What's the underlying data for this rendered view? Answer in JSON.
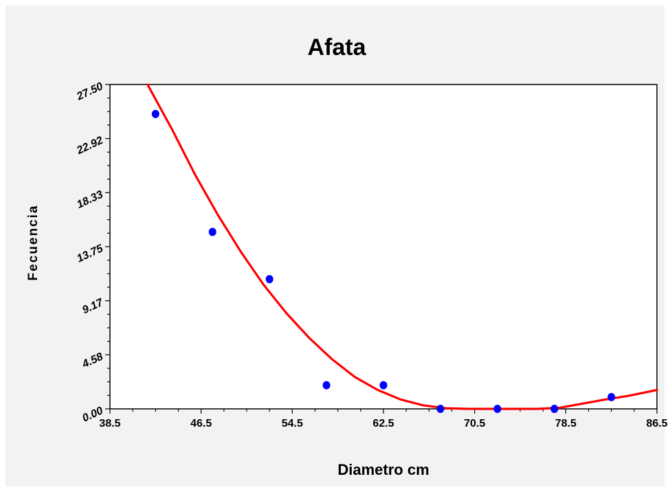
{
  "chart_data": {
    "type": "scatter",
    "title": "Afata",
    "xlabel": "Diametro cm",
    "ylabel": "Fecuencia",
    "xlim": [
      38.5,
      86.5
    ],
    "ylim": [
      0,
      27.5
    ],
    "x_ticks": [
      "38.5",
      "46.5",
      "54.5",
      "62.5",
      "70.5",
      "78.5",
      "86.5"
    ],
    "y_ticks": [
      "0.00",
      "4.58",
      "9.17",
      "13.75",
      "18.33",
      "22.92",
      "27.50"
    ],
    "points": {
      "x": [
        42.5,
        47.5,
        52.5,
        57.5,
        62.5,
        67.5,
        72.5,
        77.5,
        82.5
      ],
      "y": [
        25,
        15,
        11,
        2,
        2,
        0,
        0,
        0,
        1
      ]
    },
    "fit_curve": {
      "x": [
        41.8,
        44,
        46,
        48,
        50,
        52,
        54,
        56,
        58,
        60,
        62,
        64,
        66,
        68,
        70,
        72,
        74,
        76,
        78,
        80,
        82,
        84,
        86.5
      ],
      "y": [
        27.5,
        23.6,
        19.8,
        16.4,
        13.3,
        10.5,
        8.1,
        6.0,
        4.2,
        2.7,
        1.6,
        0.8,
        0.3,
        0.05,
        0,
        0,
        0,
        0,
        0.1,
        0.45,
        0.8,
        1.1,
        1.6
      ]
    },
    "grid": false,
    "colors": {
      "points": "#0000ff",
      "curve": "#ff0000",
      "panel": "#f2f2f2"
    }
  }
}
